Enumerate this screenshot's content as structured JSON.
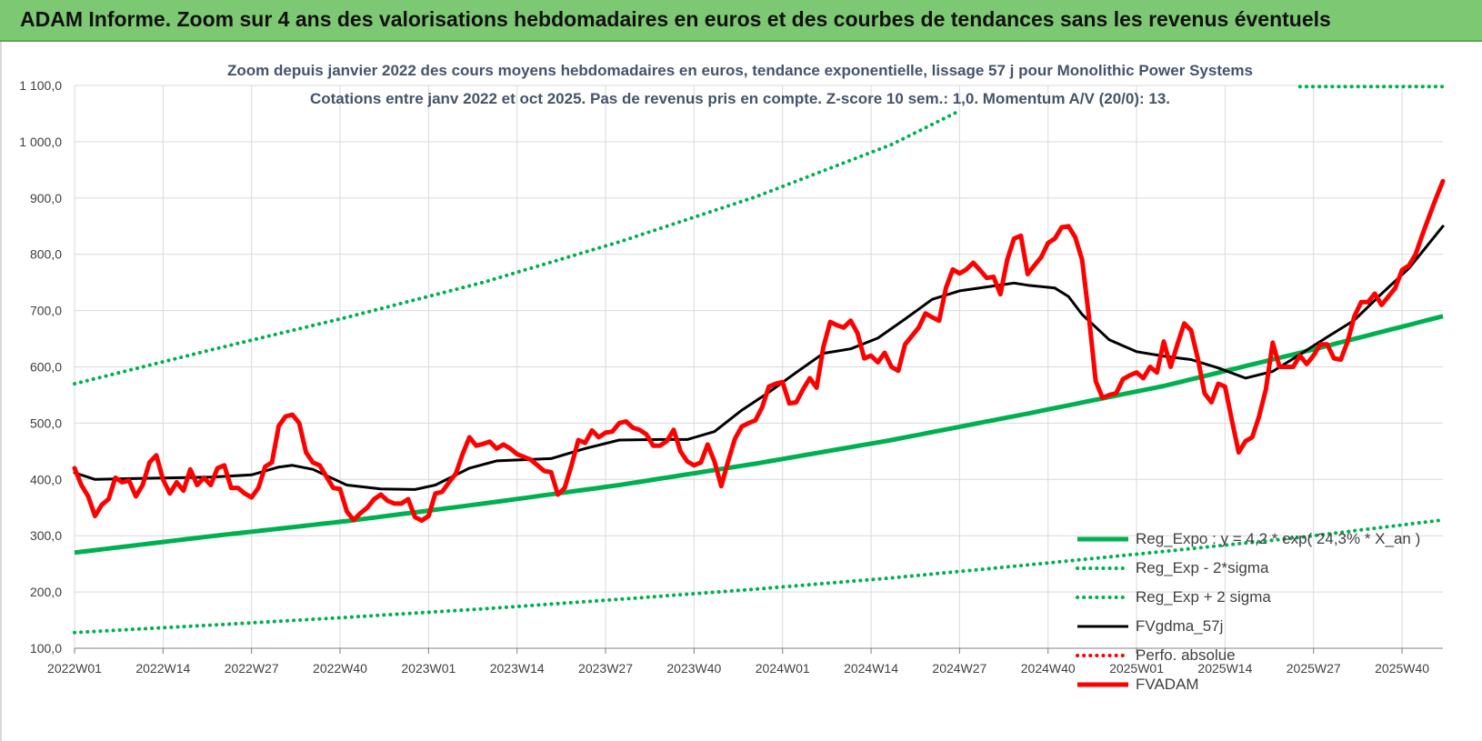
{
  "banner": {
    "title": "ADAM Informe. Zoom sur 4 ans des valorisations hebdomadaires en euros et des courbes de tendances sans les revenus éventuels"
  },
  "chart_data": {
    "type": "line",
    "title": "Zoom depuis janvier 2022 des cours moyens hebdomadaires en euros, tendance exponentielle, lissage 57 j pour Monolithic Power Systems",
    "subtitle": "Cotations entre janv 2022 et oct 2025. Pas de revenus pris en compte. Z-score 10 sem.: 1,0. Momentum A/V (20/0): 13.",
    "xlabel": "",
    "ylabel": "",
    "ylim": [
      100,
      1100
    ],
    "y_ticks": [
      "100,0",
      "200,0",
      "300,0",
      "400,0",
      "500,0",
      "600,0",
      "700,0",
      "800,0",
      "900,0",
      "1 000,0",
      "1 100,0"
    ],
    "x_ticks": [
      "2022W01",
      "2022W14",
      "2022W27",
      "2022W40",
      "2023W01",
      "2023W14",
      "2023W27",
      "2023W40",
      "2024W01",
      "2024W14",
      "2024W27",
      "2024W40",
      "2025W01",
      "2025W14",
      "2025W27",
      "2025W40"
    ],
    "x_tick_weeks": [
      0,
      13,
      26,
      39,
      52,
      65,
      78,
      91,
      104,
      117,
      130,
      143,
      156,
      169,
      182,
      195
    ],
    "xlim_weeks": [
      0,
      201
    ],
    "grid": true,
    "legend_placement": "bottom-right",
    "legend": [
      {
        "name": "Reg_Expo : y = 4,2 * exp( 24,3% * X_an )",
        "color": "#00b050",
        "style": "solid-thick"
      },
      {
        "name": "Reg_Exp - 2*sigma",
        "color": "#00b050",
        "style": "dotted"
      },
      {
        "name": "Reg_Exp + 2 sigma",
        "color": "#00b050",
        "style": "dotted"
      },
      {
        "name": "FVgdma_57j",
        "color": "#000000",
        "style": "solid"
      },
      {
        "name": "Perfo. absolue",
        "color": "#ff0000",
        "style": "dotted"
      },
      {
        "name": "FVADAM",
        "color": "#ff0000",
        "style": "solid-thick"
      }
    ],
    "series": [
      {
        "name": "Reg_Expo : y = 4,2 * exp( 24,3% * X_an )",
        "color": "#00b050",
        "x_weeks": [
          0,
          20,
          40,
          60,
          80,
          100,
          120,
          140,
          160,
          180,
          201
        ],
        "values": [
          270,
          299,
          326,
          357,
          390,
          428,
          470,
          517,
          566,
          625,
          690
        ]
      },
      {
        "name": "Reg_Exp - 2*sigma",
        "color": "#00b050",
        "x_weeks": [
          0,
          20,
          40,
          60,
          80,
          100,
          120,
          140,
          160,
          180,
          201
        ],
        "values": [
          128,
          141,
          155,
          170,
          187,
          205,
          225,
          248,
          272,
          297,
          328
        ]
      },
      {
        "name": "Reg_Exp + 2 sigma",
        "color": "#00b050",
        "x_weeks": [
          0,
          20,
          40,
          60,
          80,
          100,
          120,
          130,
          201
        ],
        "values": [
          570,
          630,
          688,
          750,
          822,
          902,
          995,
          1055,
          1098
        ],
        "gap_after_week": 130,
        "resume_week": 180
      },
      {
        "name": "FVgdma_57j",
        "color": "#000000",
        "x_weeks": [
          0,
          3,
          10,
          20,
          26,
          30,
          32,
          35,
          40,
          45,
          50,
          53,
          58,
          62,
          66,
          70,
          75,
          80,
          86,
          90,
          94,
          98,
          102,
          106,
          110,
          114,
          118,
          122,
          126,
          130,
          134,
          138,
          140,
          144,
          146,
          148,
          152,
          156,
          160,
          164,
          168,
          172,
          176,
          180,
          184,
          188,
          192,
          196,
          201
        ],
        "values": [
          412,
          400,
          402,
          404,
          408,
          422,
          425,
          418,
          390,
          383,
          382,
          390,
          420,
          433,
          435,
          437,
          455,
          470,
          471,
          471,
          485,
          523,
          555,
          590,
          624,
          632,
          651,
          685,
          720,
          735,
          742,
          749,
          745,
          740,
          725,
          693,
          648,
          627,
          619,
          613,
          598,
          580,
          592,
          622,
          653,
          683,
          730,
          775,
          850
        ]
      },
      {
        "name": "FVADAM",
        "color": "#ff0000",
        "x_weeks": [
          0,
          1,
          2,
          3,
          4,
          5,
          6,
          7,
          8,
          9,
          10,
          11,
          12,
          13,
          14,
          15,
          16,
          17,
          18,
          19,
          20,
          21,
          22,
          23,
          24,
          25,
          26,
          27,
          28,
          29,
          30,
          31,
          32,
          33,
          34,
          35,
          36,
          37,
          38,
          39,
          40,
          41,
          42,
          43,
          44,
          45,
          46,
          47,
          48,
          49,
          50,
          51,
          52,
          53,
          54,
          55,
          56,
          57,
          58,
          59,
          60,
          61,
          62,
          63,
          64,
          65,
          66,
          67,
          68,
          69,
          70,
          71,
          72,
          73,
          74,
          75,
          76,
          77,
          78,
          79,
          80,
          81,
          82,
          83,
          84,
          85,
          86,
          87,
          88,
          89,
          90,
          91,
          92,
          93,
          94,
          95,
          96,
          97,
          98,
          99,
          100,
          101,
          102,
          103,
          104,
          105,
          106,
          107,
          108,
          109,
          110,
          111,
          112,
          113,
          114,
          115,
          116,
          117,
          118,
          119,
          120,
          121,
          122,
          123,
          124,
          125,
          126,
          127,
          128,
          129,
          130,
          131,
          132,
          133,
          134,
          135,
          136,
          137,
          138,
          139,
          140,
          141,
          142,
          143,
          144,
          145,
          146,
          147,
          148,
          149,
          150,
          151,
          152,
          153,
          154,
          155,
          156,
          157,
          158,
          159,
          160,
          161,
          162,
          163,
          164,
          165,
          166,
          167,
          168,
          169,
          170,
          171,
          172,
          173,
          174,
          175,
          176,
          177,
          178,
          179,
          180,
          181,
          182,
          183,
          184,
          185,
          186,
          187,
          188,
          189,
          190,
          191,
          192,
          193,
          194,
          195,
          196,
          197,
          198,
          199,
          200,
          201
        ],
        "values": [
          420,
          390,
          370,
          335,
          355,
          365,
          403,
          395,
          398,
          370,
          390,
          430,
          443,
          400,
          375,
          395,
          380,
          418,
          390,
          403,
          390,
          420,
          425,
          385,
          385,
          375,
          368,
          385,
          423,
          430,
          495,
          512,
          515,
          500,
          448,
          430,
          425,
          405,
          385,
          383,
          343,
          328,
          340,
          350,
          365,
          373,
          362,
          357,
          357,
          365,
          333,
          327,
          335,
          375,
          378,
          395,
          410,
          445,
          475,
          460,
          463,
          467,
          455,
          462,
          455,
          445,
          440,
          435,
          425,
          415,
          413,
          373,
          385,
          425,
          470,
          465,
          487,
          475,
          483,
          485,
          500,
          503,
          492,
          488,
          480,
          460,
          460,
          468,
          488,
          450,
          432,
          425,
          430,
          462,
          432,
          388,
          432,
          472,
          494,
          500,
          505,
          528,
          565,
          570,
          573,
          535,
          537,
          560,
          580,
          563,
          635,
          680,
          674,
          670,
          682,
          660,
          615,
          620,
          608,
          625,
          600,
          593,
          640,
          655,
          670,
          695,
          688,
          682,
          740,
          773,
          766,
          773,
          785,
          772,
          758,
          760,
          729,
          790,
          828,
          833,
          765,
          780,
          795,
          820,
          828,
          848,
          850,
          830,
          790,
          690,
          575,
          545,
          550,
          553,
          578,
          585,
          590,
          580,
          600,
          590,
          645,
          600,
          640,
          677,
          665,
          615,
          553,
          537,
          570,
          565,
          505,
          448,
          468,
          475,
          512,
          560,
          643,
          600,
          600,
          600,
          620,
          605,
          620,
          640,
          640,
          615,
          613,
          645,
          690,
          715,
          715,
          730,
          710,
          725,
          740,
          772,
          780,
          800,
          835,
          868,
          900,
          930
        ]
      }
    ]
  }
}
